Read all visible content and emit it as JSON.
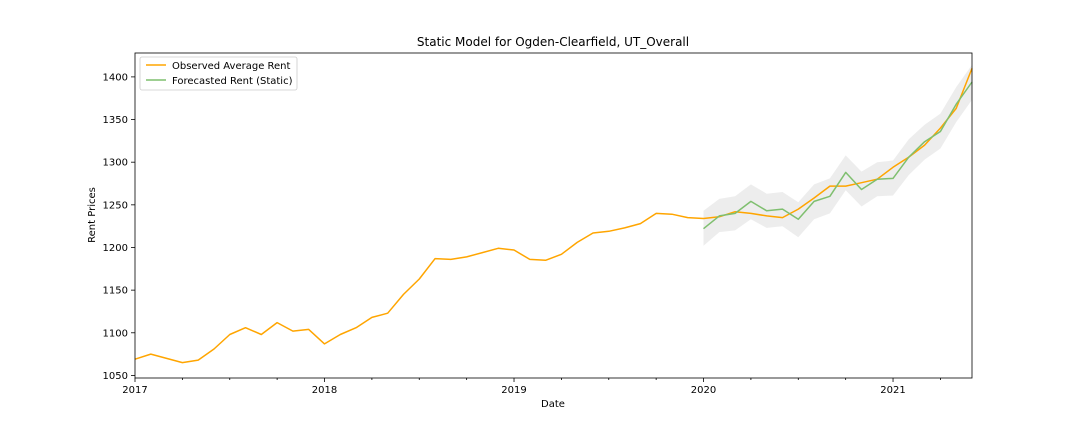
{
  "chart_data": {
    "type": "line",
    "title": "Static Model for Ogden-Clearfield, UT_Overall",
    "xlabel": "Date",
    "ylabel": "Rent Prices",
    "xlim": [
      "2017-01",
      "2021-06"
    ],
    "ylim": [
      1047,
      1428
    ],
    "x_ticks": [
      {
        "date": "2017-01",
        "label": "2017"
      },
      {
        "date": "2018-01",
        "label": "2018"
      },
      {
        "date": "2019-01",
        "label": "2019"
      },
      {
        "date": "2020-01",
        "label": "2020"
      },
      {
        "date": "2021-01",
        "label": "2021"
      }
    ],
    "y_ticks": [
      1050,
      1100,
      1150,
      1200,
      1250,
      1300,
      1350,
      1400
    ],
    "grid": false,
    "legend_position": "top-left",
    "series": [
      {
        "name": "Observed Average Rent",
        "color": "#ffa500",
        "x": [
          "2017-01",
          "2017-02",
          "2017-03",
          "2017-04",
          "2017-05",
          "2017-06",
          "2017-07",
          "2017-08",
          "2017-09",
          "2017-10",
          "2017-11",
          "2017-12",
          "2018-01",
          "2018-02",
          "2018-03",
          "2018-04",
          "2018-05",
          "2018-06",
          "2018-07",
          "2018-08",
          "2018-09",
          "2018-10",
          "2018-11",
          "2018-12",
          "2019-01",
          "2019-02",
          "2019-03",
          "2019-04",
          "2019-05",
          "2019-06",
          "2019-07",
          "2019-08",
          "2019-09",
          "2019-10",
          "2019-11",
          "2019-12",
          "2020-01",
          "2020-02",
          "2020-03",
          "2020-04",
          "2020-05",
          "2020-06",
          "2020-07",
          "2020-08",
          "2020-09",
          "2020-10",
          "2020-11",
          "2020-12",
          "2021-01",
          "2021-02",
          "2021-03",
          "2021-04",
          "2021-05",
          "2021-06"
        ],
        "values": [
          1069,
          1075,
          1070,
          1065,
          1068,
          1081,
          1098,
          1106,
          1098,
          1112,
          1102,
          1104,
          1087,
          1098,
          1106,
          1118,
          1123,
          1145,
          1163,
          1187,
          1186,
          1189,
          1194,
          1199,
          1197,
          1186,
          1185,
          1192,
          1206,
          1217,
          1219,
          1223,
          1228,
          1240,
          1239,
          1235,
          1234,
          1236,
          1242,
          1240,
          1237,
          1235,
          1245,
          1258,
          1272,
          1272,
          1276,
          1280,
          1294,
          1306,
          1320,
          1340,
          1363,
          1410
        ]
      },
      {
        "name": "Forecasted Rent (Static)",
        "color": "#7fbf6f",
        "x": [
          "2020-01",
          "2020-02",
          "2020-03",
          "2020-04",
          "2020-05",
          "2020-06",
          "2020-07",
          "2020-08",
          "2020-09",
          "2020-10",
          "2020-11",
          "2020-12",
          "2021-01",
          "2021-02",
          "2021-03",
          "2021-04",
          "2021-05",
          "2021-06"
        ],
        "values": [
          1222,
          1237,
          1240,
          1254,
          1243,
          1245,
          1233,
          1254,
          1260,
          1288,
          1268,
          1280,
          1281,
          1306,
          1324,
          1336,
          1368,
          1394
        ],
        "band_lower": [
          1202,
          1218,
          1220,
          1233,
          1223,
          1225,
          1212,
          1233,
          1240,
          1267,
          1248,
          1260,
          1261,
          1285,
          1303,
          1316,
          1347,
          1373
        ],
        "band_upper": [
          1243,
          1257,
          1260,
          1274,
          1263,
          1265,
          1253,
          1274,
          1281,
          1308,
          1289,
          1300,
          1302,
          1327,
          1344,
          1357,
          1388,
          1414
        ]
      }
    ]
  }
}
